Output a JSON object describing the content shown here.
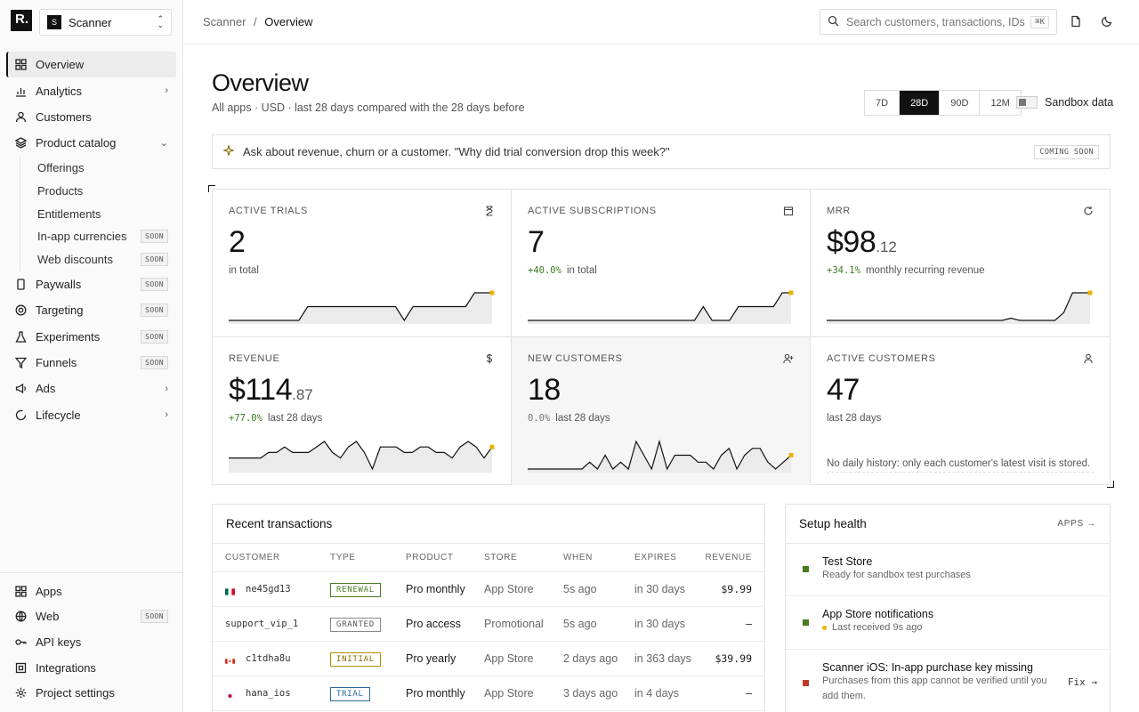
{
  "sidebar": {
    "logo": "R.",
    "project": {
      "badge": "S",
      "name": "Scanner"
    },
    "items": [
      {
        "label": "Overview"
      },
      {
        "label": "Analytics"
      },
      {
        "label": "Customers"
      },
      {
        "label": "Product catalog"
      }
    ],
    "catalog": [
      {
        "label": "Offerings"
      },
      {
        "label": "Products"
      },
      {
        "label": "Entitlements"
      },
      {
        "label": "In-app currencies",
        "badge": "SOON"
      },
      {
        "label": "Web discounts",
        "badge": "SOON"
      }
    ],
    "items2": [
      {
        "label": "Paywalls",
        "badge": "SOON"
      },
      {
        "label": "Targeting",
        "badge": "SOON"
      },
      {
        "label": "Experiments",
        "badge": "SOON"
      },
      {
        "label": "Funnels",
        "badge": "SOON"
      },
      {
        "label": "Ads"
      },
      {
        "label": "Lifecycle"
      }
    ],
    "bottom": [
      {
        "label": "Apps"
      },
      {
        "label": "Web",
        "badge": "SOON"
      },
      {
        "label": "API keys"
      },
      {
        "label": "Integrations"
      },
      {
        "label": "Project settings"
      }
    ]
  },
  "topbar": {
    "crumb_root": "Scanner",
    "crumb_sep": "/",
    "crumb_current": "Overview",
    "search_placeholder": "Search customers, transactions, IDs",
    "search_kbd": "⌘K"
  },
  "header": {
    "title": "Overview",
    "subtitle": "All apps · USD · last 28 days compared with the 28 days before",
    "ranges": [
      "7D",
      "28D",
      "90D",
      "12M"
    ],
    "range_selected": "28D",
    "sandbox_label": "Sandbox data"
  },
  "ask": {
    "text": "Ask about revenue, churn or a customer. \"Why did trial conversion drop this week?\"",
    "badge": "COMING SOON"
  },
  "metrics": [
    {
      "label": "ACTIVE TRIALS",
      "value": "2",
      "cents": "",
      "delta": "",
      "note": "in total",
      "icon": "hourglass-icon",
      "spark": [
        0,
        0,
        0,
        0,
        0,
        0,
        0,
        0,
        0,
        1,
        1,
        1,
        1,
        1,
        1,
        1,
        1,
        1,
        1,
        1,
        0,
        1,
        1,
        1,
        1,
        1,
        1,
        1,
        2,
        2,
        2
      ]
    },
    {
      "label": "ACTIVE SUBSCRIPTIONS",
      "value": "7",
      "cents": "",
      "delta": "+40.0%",
      "note": "in total",
      "icon": "calendar-icon",
      "spark": [
        5,
        5,
        5,
        5,
        5,
        5,
        5,
        5,
        5,
        5,
        5,
        5,
        5,
        5,
        5,
        5,
        5,
        5,
        5,
        5,
        6,
        5,
        5,
        5,
        6,
        6,
        6,
        6,
        6,
        7,
        7
      ]
    },
    {
      "label": "MRR",
      "value": "$98",
      "cents": ".12",
      "delta": "+34.1%",
      "note": "monthly recurring revenue",
      "icon": "refresh-icon",
      "spark": [
        73,
        73,
        73,
        73,
        73,
        73,
        73,
        73,
        73,
        73,
        73,
        73,
        73,
        73,
        73,
        73,
        73,
        73,
        73,
        73,
        73,
        75,
        73,
        73,
        73,
        73,
        73,
        80,
        98,
        98,
        98
      ]
    },
    {
      "label": "REVENUE",
      "value": "$114",
      "cents": ".87",
      "delta": "+77.0%",
      "note": "last 28 days",
      "icon": "dollar-icon",
      "spark": [
        2,
        2,
        2,
        2,
        2,
        3,
        3,
        4,
        3,
        3,
        3,
        4,
        5,
        3,
        2,
        4,
        5,
        3,
        0,
        4,
        4,
        4,
        3,
        3,
        4,
        4,
        3,
        3,
        2,
        4,
        5,
        4,
        2,
        4
      ]
    },
    {
      "label": "NEW CUSTOMERS",
      "value": "18",
      "cents": "",
      "delta": "0.0%",
      "note": "last 28 days",
      "icon": "user-plus-icon",
      "spark": [
        0,
        0,
        0,
        0,
        0,
        0,
        0,
        0,
        1,
        0,
        2,
        0,
        1,
        0,
        4,
        2,
        0,
        4,
        0,
        2,
        2,
        2,
        1,
        1,
        0,
        2,
        3,
        0,
        2,
        3,
        3,
        1,
        0,
        1,
        2
      ]
    },
    {
      "label": "ACTIVE CUSTOMERS",
      "value": "47",
      "cents": "",
      "delta": "",
      "note": "last 28 days",
      "icon": "user-icon",
      "nohist": "No daily history: only each customer's latest visit is stored."
    }
  ],
  "transactions": {
    "title": "Recent transactions",
    "headers": [
      "CUSTOMER",
      "TYPE",
      "PRODUCT",
      "STORE",
      "WHEN",
      "EXPIRES",
      "REVENUE"
    ],
    "rows": [
      {
        "flag": "mx",
        "customer": "ne45gd13",
        "type": "RENEWAL",
        "type_class": "renewal",
        "product": "Pro monthly",
        "store": "App Store",
        "when": "5s ago",
        "expires": "in 30 days",
        "revenue": "$9.99"
      },
      {
        "flag": "",
        "customer": "support_vip_1",
        "type": "GRANTED",
        "type_class": "granted",
        "product": "Pro access",
        "store": "Promotional",
        "when": "5s ago",
        "expires": "in 30 days",
        "revenue": "—"
      },
      {
        "flag": "ca",
        "customer": "c1tdha8u",
        "type": "INITIAL",
        "type_class": "initial",
        "product": "Pro yearly",
        "store": "App Store",
        "when": "2 days ago",
        "expires": "in 363 days",
        "revenue": "$39.99"
      },
      {
        "flag": "jp",
        "customer": "hana_ios",
        "type": "TRIAL",
        "type_class": "trial",
        "product": "Pro monthly",
        "store": "App Store",
        "when": "3 days ago",
        "expires": "in 4 days",
        "revenue": "—"
      }
    ]
  },
  "health": {
    "title": "Setup health",
    "link": "APPS →",
    "items": [
      {
        "title": "Test Store",
        "desc": "Ready for sandbox test purchases",
        "dot": "#4a7a21"
      },
      {
        "title": "App Store notifications",
        "desc": "Last received 9s ago",
        "dot": "#4a7a21",
        "subdot": "#e8b400"
      },
      {
        "title": "Scanner iOS: In-app purchase key missing",
        "desc": "Purchases from this app cannot be verified until you add them.",
        "dot": "#c0392b",
        "action": "Fix →"
      }
    ]
  },
  "colors": {
    "accent": "#111111",
    "positive": "#3d7a1c",
    "spark_marker": "#e8b400"
  }
}
